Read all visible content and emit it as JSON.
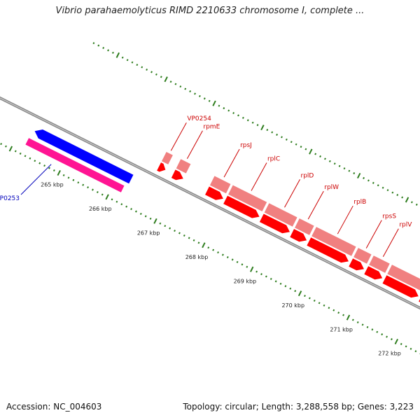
{
  "title": "Vibrio parahaemolyticus RIMD 2210633 chromosome I, complete ...",
  "footer": {
    "accession": "Accession: NC_004603",
    "summary": "Topology: circular; Length: 3,288,558 bp; Genes: 3,223"
  },
  "colors": {
    "backbone": "#888888",
    "tick": "#2e7d1e",
    "gene_forward": "#ff0000",
    "gene_forward_light": "#f08080",
    "gene_blue": "#0000ff",
    "gene_magenta": "#ff1493",
    "label_red": "#cc0000",
    "label_blue": "#0000bb"
  },
  "ticks": [
    {
      "kbp": 265,
      "label": "265 kbp"
    },
    {
      "kbp": 266,
      "label": "266 kbp"
    },
    {
      "kbp": 267,
      "label": "267 kbp"
    },
    {
      "kbp": 268,
      "label": "268 kbp"
    },
    {
      "kbp": 269,
      "label": "269 kbp"
    },
    {
      "kbp": 270,
      "label": "270 kbp"
    },
    {
      "kbp": 271,
      "label": "271 kbp"
    },
    {
      "kbp": 272,
      "label": "272 kbp"
    }
  ],
  "genes": [
    {
      "name": "VP0253",
      "start_kbp": 264.25,
      "end_kbp": 266.25,
      "track": "inner",
      "strand": "-",
      "color": "gene_blue",
      "label_color": "label_blue"
    },
    {
      "name": "VP0254",
      "start_kbp": 266.6,
      "end_kbp": 266.75,
      "track": "outer",
      "strand": "+",
      "color": "gene_forward",
      "label_color": "label_red"
    },
    {
      "name": "rpmE",
      "start_kbp": 266.9,
      "end_kbp": 267.12,
      "track": "outer",
      "strand": "+",
      "color": "gene_forward",
      "label_color": "label_red"
    },
    {
      "name": "rpsJ",
      "start_kbp": 267.6,
      "end_kbp": 267.95,
      "track": "outer",
      "strand": "+",
      "color": "gene_forward",
      "label_color": "label_red"
    },
    {
      "name": "rplC",
      "start_kbp": 267.98,
      "end_kbp": 268.7,
      "track": "outer",
      "strand": "+",
      "color": "gene_forward",
      "label_color": "label_red"
    },
    {
      "name": "rplD",
      "start_kbp": 268.73,
      "end_kbp": 269.33,
      "track": "outer",
      "strand": "+",
      "color": "gene_forward",
      "label_color": "label_red"
    },
    {
      "name": "rplW",
      "start_kbp": 269.36,
      "end_kbp": 269.68,
      "track": "outer",
      "strand": "+",
      "color": "gene_forward",
      "label_color": "label_red"
    },
    {
      "name": "rplB",
      "start_kbp": 269.71,
      "end_kbp": 270.55,
      "track": "outer",
      "strand": "+",
      "color": "gene_forward",
      "label_color": "label_red"
    },
    {
      "name": "rpsS",
      "start_kbp": 270.58,
      "end_kbp": 270.87,
      "track": "outer",
      "strand": "+",
      "color": "gene_forward",
      "label_color": "label_red"
    },
    {
      "name": "rplV",
      "start_kbp": 270.9,
      "end_kbp": 271.25,
      "track": "outer",
      "strand": "+",
      "color": "gene_forward",
      "label_color": "label_red"
    },
    {
      "name": "",
      "start_kbp": 271.28,
      "end_kbp": 272.0,
      "track": "outer",
      "strand": "+",
      "color": "gene_forward",
      "label_color": "label_red"
    },
    {
      "name": "",
      "start_kbp": 272.03,
      "end_kbp": 272.3,
      "track": "outer",
      "strand": "+",
      "color": "gene_forward",
      "label_color": "label_red"
    }
  ]
}
